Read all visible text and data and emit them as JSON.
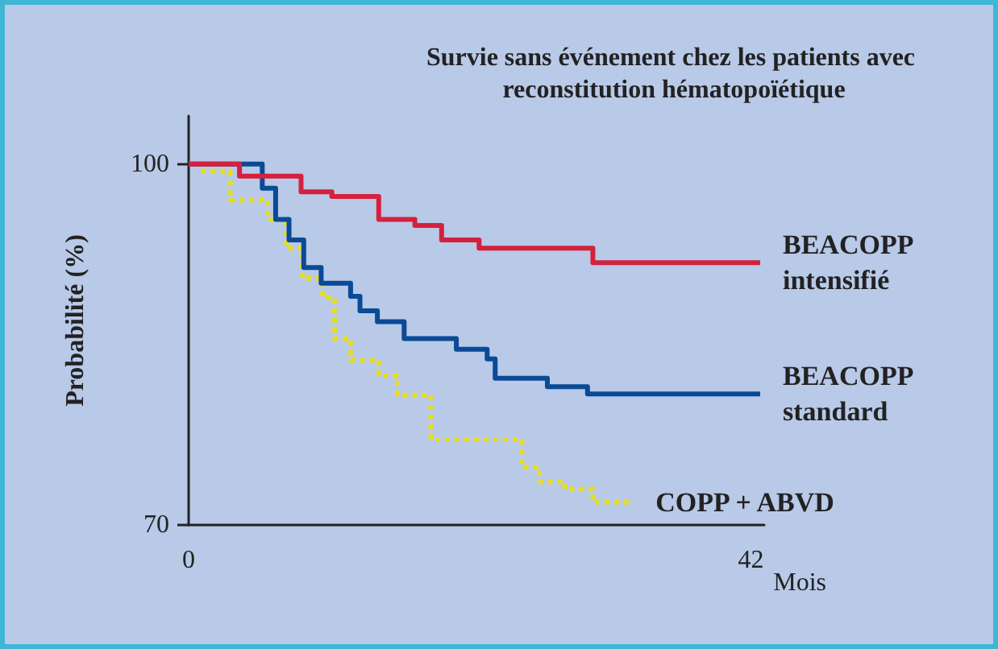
{
  "chart_data": {
    "type": "step",
    "title": "Survie sans événement chez les patients avec reconstitution hématopoïétique",
    "xlabel": "Mois",
    "ylabel": "Probabilité (%)",
    "xlim": [
      0,
      43
    ],
    "xticks": [
      0,
      42
    ],
    "ylim": [
      70,
      104
    ],
    "yticks": [
      70,
      100
    ],
    "grid": false,
    "legend": false,
    "marker": "none",
    "series": [
      {
        "name": "BEACOPP intensifié",
        "color": "#d4213d",
        "line_style": "solid",
        "x": [
          0,
          3.8,
          8.4,
          10.7,
          14.2,
          16.9,
          18.9,
          21.7,
          30.2,
          42.7
        ],
        "values": [
          100,
          99.0,
          97.7,
          97.3,
          95.4,
          94.9,
          93.7,
          93.0,
          91.8,
          91.8
        ]
      },
      {
        "name": "BEACOPP standard",
        "color": "#0a4a96",
        "line_style": "solid",
        "x": [
          0,
          5.5,
          6.5,
          7.5,
          8.6,
          9.9,
          12.1,
          12.8,
          14.1,
          16.1,
          20.0,
          22.3,
          22.9,
          26.8,
          29.8,
          42.7
        ],
        "values": [
          100,
          98.0,
          95.4,
          93.7,
          91.4,
          90.1,
          89.0,
          87.8,
          86.9,
          85.5,
          84.6,
          83.8,
          82.2,
          81.5,
          80.9,
          80.9
        ]
      },
      {
        "name": "COPP + ABVD",
        "color": "#e6df1e",
        "line_style": "dotted",
        "x": [
          0,
          1.1,
          3.1,
          5.9,
          7.3,
          8.5,
          10.0,
          10.9,
          12.1,
          14.2,
          15.6,
          18.1,
          24.9,
          26.2,
          28.1,
          30.2,
          33.2
        ],
        "values": [
          100,
          99.4,
          97.0,
          95.4,
          93.0,
          90.5,
          88.9,
          85.5,
          83.7,
          82.4,
          80.8,
          77.1,
          74.8,
          73.6,
          73.0,
          71.9,
          71.9
        ]
      }
    ]
  }
}
